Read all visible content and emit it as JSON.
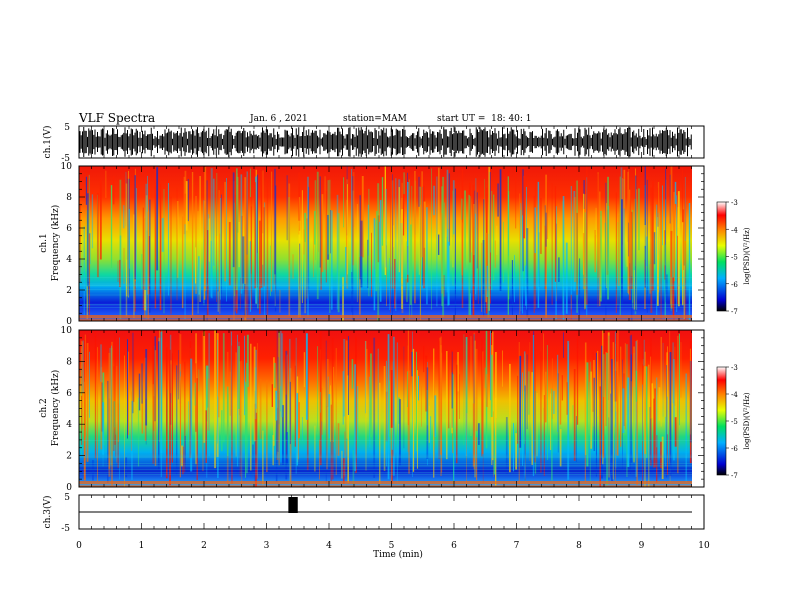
{
  "header": {
    "title": "VLF Spectra",
    "date": "Jan. 6 , 2021",
    "station": "station=MAM",
    "start": "start UT =  18: 40: 1"
  },
  "chart_data": [
    {
      "type": "line",
      "panel": "ch1-waveform",
      "ylabel": "ch.1(V)",
      "yticks": [
        "5",
        "-5"
      ],
      "ylim": [
        -5,
        5
      ]
    },
    {
      "type": "heatmap",
      "panel": "ch1-spectrogram",
      "ylabel_top": "ch.1",
      "ylabel": "Frequency (kHz)",
      "yticks": [
        "0",
        "2",
        "4",
        "6",
        "8",
        "10"
      ],
      "ylim": [
        0,
        10
      ],
      "xlim": [
        0,
        10
      ],
      "colorbar": {
        "label": "log(PSD)(V²/Hz)",
        "ticks": [
          "-3",
          "-4",
          "-5",
          "-6",
          "-7"
        ],
        "range": [
          -7,
          -3
        ]
      }
    },
    {
      "type": "heatmap",
      "panel": "ch2-spectrogram",
      "ylabel_top": "ch.2",
      "ylabel": "Frequency (kHz)",
      "yticks": [
        "0",
        "2",
        "4",
        "6",
        "8",
        "10"
      ],
      "ylim": [
        0,
        10
      ],
      "xlim": [
        0,
        10
      ],
      "colorbar": {
        "label": "log(PSD)(V²/Hz)",
        "ticks": [
          "-3",
          "-4",
          "-5",
          "-6",
          "-7"
        ],
        "range": [
          -7,
          -3
        ]
      }
    },
    {
      "type": "line",
      "panel": "ch3-waveform",
      "ylabel": "ch.3(V)",
      "yticks": [
        "5",
        "-5"
      ],
      "ylim": [
        -5,
        5
      ],
      "pulse": {
        "x_start": 3.35,
        "x_end": 3.5
      }
    }
  ],
  "xaxis": {
    "label": "Time (min)",
    "ticks": [
      "0",
      "1",
      "2",
      "3",
      "4",
      "5",
      "6",
      "7",
      "8",
      "9",
      "10"
    ],
    "range": [
      0,
      10
    ]
  }
}
